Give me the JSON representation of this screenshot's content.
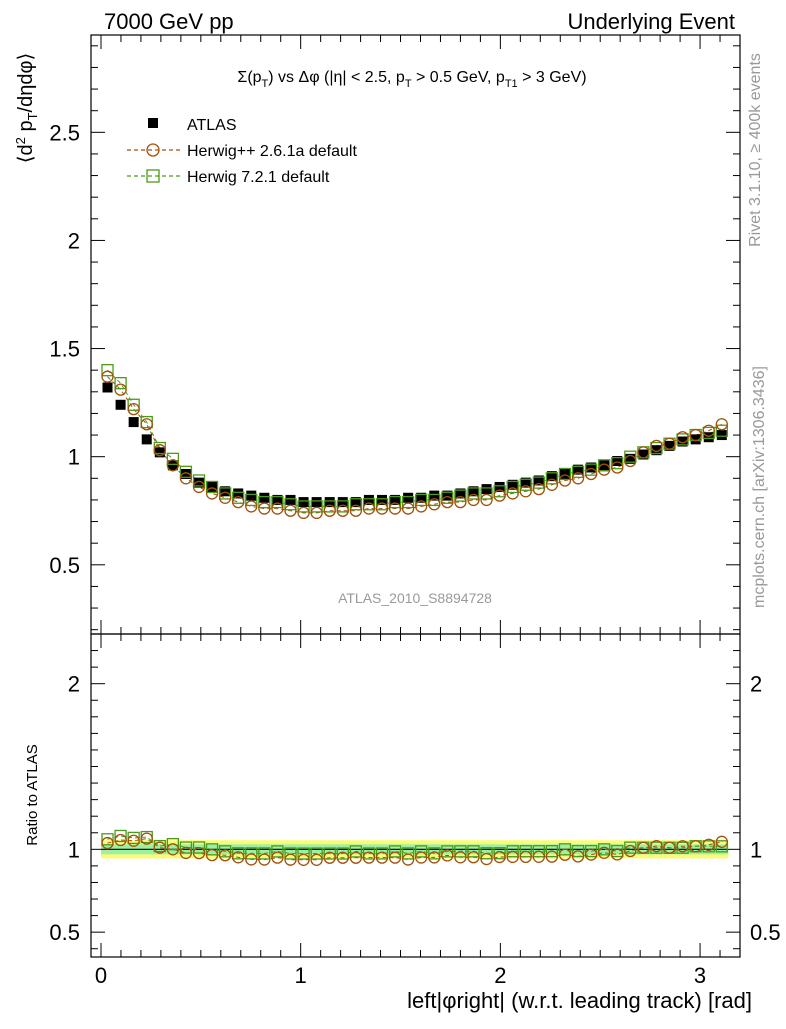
{
  "header": {
    "left": "7000 GeV pp",
    "right": "Underlying Event"
  },
  "side_text": {
    "rivet": "Rivet 3.1.10, ≥ 400k events",
    "mcplots": "mcplots.cern.ch [arXiv:1306.3436]"
  },
  "watermark": "ATLAS_2010_S8894728",
  "chart_data": [
    {
      "type": "scatter",
      "title": "Σ(p_T) vs Δφ (|η| < 2.5, p_T > 0.5 GeV, p_T1 > 3 GeV)",
      "xlabel": "left|φright| (w.r.t. leading track) [rad]",
      "ylabel": "⟨d² p_T/dηdφ⟩",
      "xlim": [
        -0.05,
        3.2
      ],
      "ylim": [
        0.18,
        2.95
      ],
      "y_ticks": [
        "0.5",
        "1",
        "1.5",
        "2",
        "2.5"
      ],
      "x_ticks": [
        "0",
        "1",
        "2",
        "3"
      ],
      "legend": [
        {
          "name": "ATLAS",
          "marker": "square-filled",
          "color": "#000000"
        },
        {
          "name": "Herwig++ 2.6.1a default",
          "marker": "circle-open",
          "color": "#a0520a"
        },
        {
          "name": "Herwig 7.2.1 default",
          "marker": "square-open",
          "color": "#4c9a1b"
        }
      ],
      "x": [
        0.0327,
        0.0982,
        0.1636,
        0.2291,
        0.2945,
        0.36,
        0.4254,
        0.4909,
        0.5563,
        0.6218,
        0.6872,
        0.7527,
        0.8181,
        0.8836,
        0.949,
        1.0145,
        1.0799,
        1.1454,
        1.2108,
        1.2763,
        1.3417,
        1.4072,
        1.4726,
        1.5381,
        1.6035,
        1.669,
        1.7344,
        1.7999,
        1.8653,
        1.9308,
        1.9962,
        2.0617,
        2.1271,
        2.1926,
        2.258,
        2.3235,
        2.3889,
        2.4544,
        2.5198,
        2.5853,
        2.6507,
        2.7162,
        2.7816,
        2.8471,
        2.9125,
        2.978,
        3.0434,
        3.1089
      ],
      "series": [
        {
          "name": "ATLAS",
          "values": [
            1.32,
            1.24,
            1.16,
            1.08,
            1.02,
            0.96,
            0.92,
            0.88,
            0.86,
            0.84,
            0.83,
            0.82,
            0.81,
            0.8,
            0.8,
            0.79,
            0.79,
            0.79,
            0.79,
            0.79,
            0.8,
            0.8,
            0.8,
            0.81,
            0.81,
            0.82,
            0.82,
            0.83,
            0.84,
            0.85,
            0.86,
            0.87,
            0.88,
            0.89,
            0.91,
            0.92,
            0.94,
            0.95,
            0.96,
            0.98,
            0.99,
            1.01,
            1.03,
            1.05,
            1.07,
            1.08,
            1.09,
            1.1
          ]
        },
        {
          "name": "Herwig++ 2.6.1a default",
          "values": [
            1.37,
            1.31,
            1.22,
            1.15,
            1.03,
            0.96,
            0.9,
            0.86,
            0.83,
            0.81,
            0.79,
            0.77,
            0.76,
            0.76,
            0.75,
            0.74,
            0.74,
            0.75,
            0.75,
            0.75,
            0.76,
            0.76,
            0.76,
            0.76,
            0.77,
            0.78,
            0.79,
            0.79,
            0.8,
            0.8,
            0.82,
            0.83,
            0.84,
            0.85,
            0.87,
            0.89,
            0.9,
            0.92,
            0.94,
            0.95,
            0.98,
            1.02,
            1.05,
            1.06,
            1.09,
            1.1,
            1.12,
            1.15
          ]
        },
        {
          "name": "Herwig 7.2.1 default",
          "values": [
            1.4,
            1.34,
            1.24,
            1.16,
            1.04,
            0.99,
            0.93,
            0.89,
            0.86,
            0.83,
            0.81,
            0.8,
            0.79,
            0.79,
            0.78,
            0.77,
            0.77,
            0.77,
            0.77,
            0.78,
            0.78,
            0.78,
            0.79,
            0.79,
            0.8,
            0.8,
            0.81,
            0.82,
            0.83,
            0.83,
            0.84,
            0.86,
            0.87,
            0.88,
            0.9,
            0.92,
            0.93,
            0.94,
            0.96,
            0.97,
            1.0,
            1.02,
            1.04,
            1.06,
            1.08,
            1.1,
            1.11,
            1.12
          ]
        }
      ]
    },
    {
      "type": "scatter",
      "xlabel": "left|φright| (w.r.t. leading track) [rad]",
      "ylabel": "Ratio to ATLAS",
      "xlim": [
        -0.05,
        3.2
      ],
      "ylim": [
        0.35,
        2.3
      ],
      "y_ticks": [
        "0.5",
        "1",
        "2"
      ],
      "x_ticks": [
        "0",
        "1",
        "2",
        "3"
      ],
      "band_inner": [
        0.97,
        1.03
      ],
      "band_outer": [
        0.945,
        1.055
      ],
      "reference": 1.0
    }
  ],
  "colors": {
    "band_outer": "#fbfb78",
    "band_inner": "#9cf0a4",
    "herwig_pp": "#a0520a",
    "herwig7": "#4c9a1b"
  }
}
